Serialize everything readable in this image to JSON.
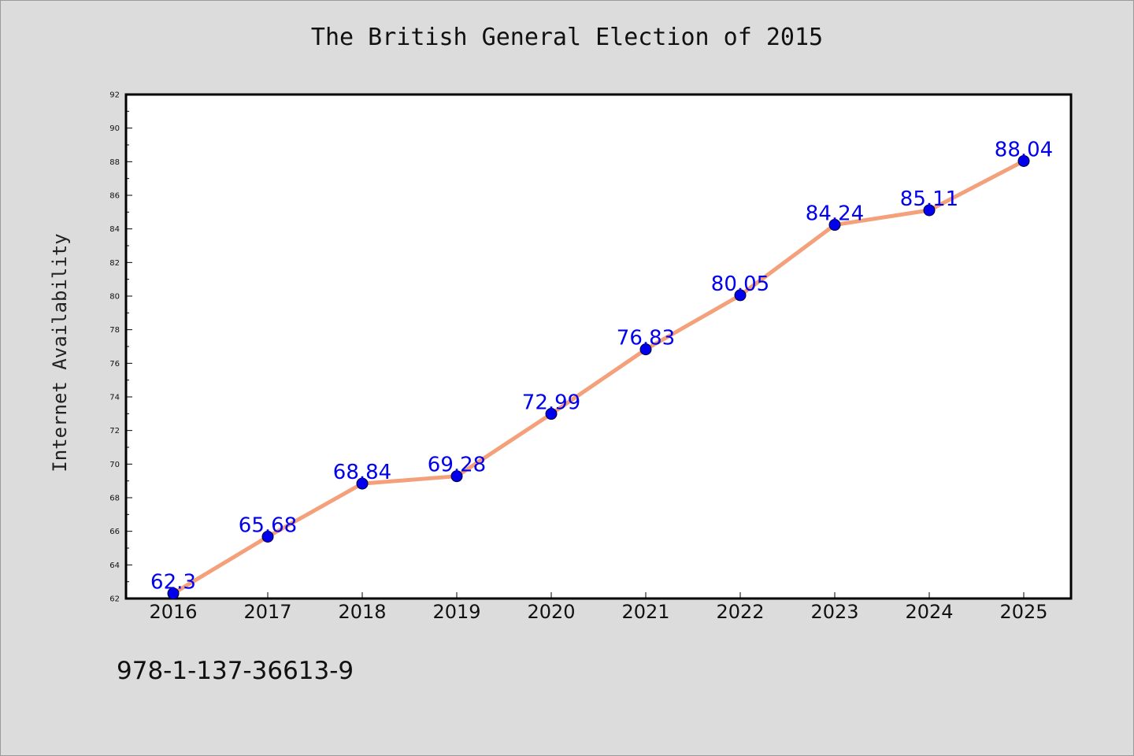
{
  "chart_data": {
    "type": "line",
    "title": "The British General Election of 2015",
    "xlabel": "",
    "ylabel": "Internet Availability",
    "x": [
      "2016",
      "2017",
      "2018",
      "2019",
      "2020",
      "2021",
      "2022",
      "2023",
      "2024",
      "2025"
    ],
    "series": [
      {
        "values": [
          62.3,
          65.68,
          68.84,
          69.28,
          72.99,
          76.83,
          80.05,
          84.24,
          85.11,
          88.04
        ],
        "labels": [
          "62.3",
          "65.68",
          "68.84",
          "69.28",
          "72.99",
          "76.83",
          "80.05",
          "84.24",
          "85.11",
          "88.04"
        ],
        "line_color": "#f4a07a",
        "marker_color": "#0000ee",
        "label_color": "#0000ee"
      }
    ],
    "ylim": [
      62,
      92
    ],
    "yticks": [
      "62",
      "64",
      "66",
      "68",
      "70",
      "72",
      "74",
      "76",
      "78",
      "80",
      "82",
      "84",
      "86",
      "88",
      "90",
      "92"
    ],
    "grid": false,
    "legend": "none"
  },
  "footer": {
    "code": "978-1-137-36613-9"
  },
  "colors": {
    "background": "#dcdcdc",
    "plot_area": "#ffffff",
    "axes": "#000000"
  }
}
